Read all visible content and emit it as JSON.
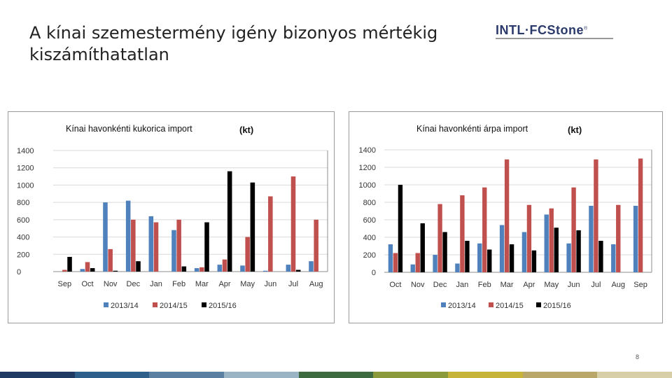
{
  "slide": {
    "title": "A kínai szemestermény igény bizonyos mértékig kiszámíthatatlan",
    "page_number": "8"
  },
  "logo": {
    "text": "INTL·FCStone",
    "registered": "®"
  },
  "colors": {
    "series_2013_14": "#4f81bd",
    "series_2014_15": "#c0504d",
    "series_2015_16": "#000000",
    "footer": [
      "#1f3b63",
      "#2e5f8a",
      "#5a7fa0",
      "#9ab3c5",
      "#3d6b3f",
      "#8a9a3a",
      "#c7b23a",
      "#b9a76a",
      "#d8cfa8"
    ]
  },
  "chart_data": [
    {
      "type": "bar",
      "title": "Kínai havonkénti kukorica import",
      "unit": "(kt)",
      "categories": [
        "Sep",
        "Oct",
        "Nov",
        "Dec",
        "Jan",
        "Feb",
        "Mar",
        "Apr",
        "May",
        "Jun",
        "Jul",
        "Aug"
      ],
      "series": [
        {
          "name": "2013/14",
          "values": [
            0,
            30,
            800,
            820,
            640,
            480,
            40,
            80,
            70,
            10,
            80,
            120
          ]
        },
        {
          "name": "2014/15",
          "values": [
            20,
            110,
            260,
            600,
            570,
            600,
            50,
            140,
            400,
            870,
            1100,
            600
          ]
        },
        {
          "name": "2015/16",
          "values": [
            170,
            40,
            10,
            120,
            0,
            60,
            570,
            1160,
            1030,
            0,
            20,
            0
          ]
        }
      ],
      "ylim": [
        0,
        1400
      ],
      "yticks": [
        "0",
        "200",
        "400",
        "600",
        "800",
        "1000",
        "1200",
        "1400"
      ],
      "legend": "bottom"
    },
    {
      "type": "bar",
      "title": "Kínai havonkénti árpa import",
      "unit": "(kt)",
      "categories": [
        "Oct",
        "Nov",
        "Dec",
        "Jan",
        "Feb",
        "Mar",
        "Apr",
        "May",
        "Jun",
        "Jul",
        "Aug",
        "Sep"
      ],
      "series": [
        {
          "name": "2013/14",
          "values": [
            320,
            90,
            200,
            100,
            330,
            540,
            460,
            660,
            330,
            760,
            320,
            760
          ]
        },
        {
          "name": "2014/15",
          "values": [
            220,
            220,
            780,
            880,
            970,
            1290,
            770,
            730,
            970,
            1290,
            770,
            1300
          ]
        },
        {
          "name": "2015/16",
          "values": [
            1000,
            560,
            460,
            360,
            260,
            320,
            250,
            510,
            480,
            360,
            0,
            0
          ]
        }
      ],
      "ylim": [
        0,
        1400
      ],
      "yticks": [
        "0",
        "200",
        "400",
        "600",
        "800",
        "1000",
        "1200",
        "1400"
      ],
      "legend": "bottom"
    }
  ]
}
